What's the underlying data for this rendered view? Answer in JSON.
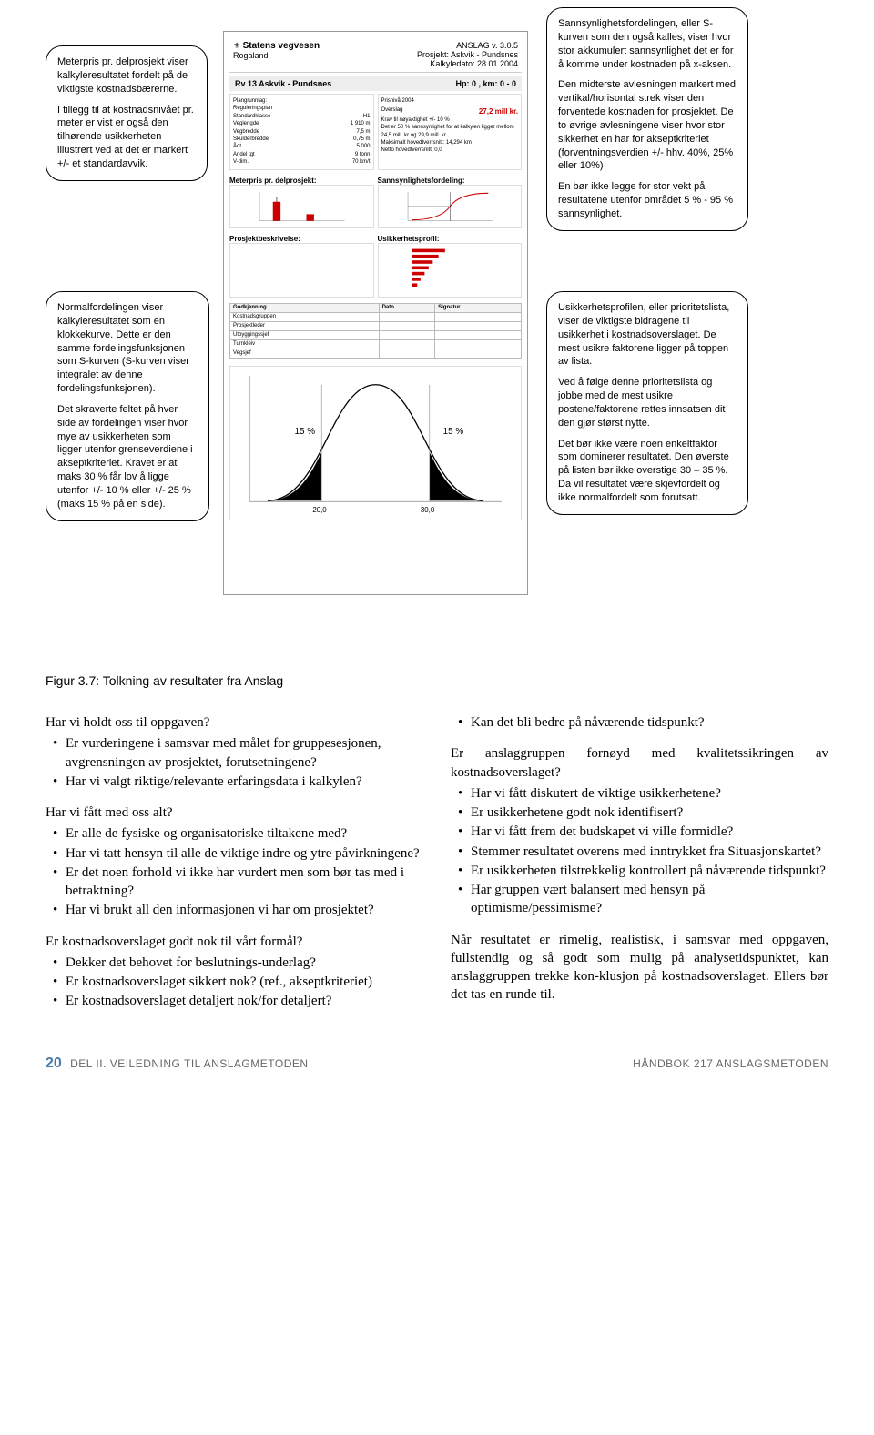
{
  "callouts": {
    "c1_p1": "Meterpris pr. delprosjekt viser kalkyleresultatet fordelt på de viktigste kostnadsbærerne.",
    "c1_p2": "I tillegg til at kostnadsnivået pr. meter er vist er også den tilhørende usikkerheten illustrert ved at det er markert +/- et standardavvik.",
    "c2_p1": "Sannsynlighetsfordelingen, eller S-kurven som den også kalles, viser hvor stor akkumulert sannsynlighet det er for å komme under kostnaden på x-aksen.",
    "c2_p2": "Den midterste avlesningen markert med vertikal/horisontal strek viser den forventede kostnaden for prosjektet. De to øvrige avlesningene viser hvor stor sikkerhet en har for akseptkriteriet (forventningsverdien +/- hhv. 40%, 25% eller 10%)",
    "c2_p3": "En bør ikke legge for stor vekt på resultatene utenfor området 5 % - 95 % sannsynlighet.",
    "c3_p1": "Normalfordelingen viser kalkyleresultatet som en klokkekurve. Dette er den samme fordelingsfunksjonen som S-kurven (S-kurven viser integralet av denne fordelingsfunksjonen).",
    "c3_p2": "Det skraverte feltet på hver side av fordelingen viser hvor mye av usikkerheten som ligger utenfor grenseverdiene i akseptkriteriet. Kravet er at maks 30 % får lov å ligge utenfor +/- 10 % eller +/- 25 % (maks 15 % på en side).",
    "c4_p1": "Usikkerhetsprofilen, eller prioritetslista, viser de viktigste bidragene til usikkerhet i kostnadsoverslaget. De mest usikre faktorene ligger på toppen av lista.",
    "c4_p2": "Ved å følge denne prioritetslista og jobbe med de mest usikre postene/faktorene rettes innsatsen dit den gjør størst nytte.",
    "c4_p3": "Det bør ikke være noen enkeltfaktor som dominerer resultatet. Den øverste på listen bør ikke overstige 30 – 35 %. Da vil resultatet være skjevfordelt og ikke normalfordelt som forutsatt."
  },
  "doc": {
    "org": "Statens vegvesen",
    "region": "Rogaland",
    "ver": "ANSLAG v. 3.0.5",
    "proj": "Prosjekt: Askvik - Pundsnes",
    "date": "Kalkyledato: 28.01.2004",
    "title_bar": "Rv 13 Askvik - Pundsnes",
    "hp": "Hp: 0 , km: 0 - 0",
    "left_col": {
      "l1": "Plangrunnlag:",
      "l1v": "Reguleringsplan",
      "l2": "Standardklasse",
      "l2v": "H1",
      "l3": "Veglengde",
      "l3v": "1 910 m",
      "l4": "Vegbredde",
      "l4v": "7,5 m",
      "l5": "Skulderbredde",
      "l5v": "0,75 m",
      "l6": "Ådt",
      "l6v": "5 000",
      "l7": "Andel tgt",
      "l7v": "9 tonn",
      "l8": "V-dim.",
      "l8v": "70 km/t"
    },
    "right_col": {
      "r1": "Prisnivå 2004",
      "r2_label": "Overslag",
      "r2_value": "27,2 mill kr.",
      "r3": "Krav til nøyaktighet +/- 10 %",
      "r4": "Det er 50 % sannsynlighet for at kalkylen ligger mellom 24,5 mill. kr og 29,9 mill. kr",
      "r5": "Maksimalt hovedtverrsnitt: 14,294 km",
      "r6": "Netto hovedtverrsnitt: 0,0"
    },
    "sect_meterpris": "Meterpris pr. delprosjekt:",
    "sect_sannsyn": "Sannsynlighetsfordeling:",
    "sect_prosjbesk": "Prosjektbeskrivelse:",
    "sect_usikker": "Usikkerhetsprofil:",
    "approval_headers": [
      "Godkjenning",
      "Dato",
      "Signatur"
    ],
    "approval_rows": [
      "Kostnadsgruppen",
      "Prosjektleder",
      "Utbyggingssjef",
      "Turnkleiv",
      "Vegsjef"
    ],
    "bell_left_pct": "15 %",
    "bell_right_pct": "15 %",
    "bell_x1": "20,0",
    "bell_x2": "30,0"
  },
  "caption": "Figur 3.7: Tolkning av resultater fra Anslag",
  "colL": {
    "q1": "Har vi holdt oss til oppgaven?",
    "q1_items": [
      "Er vurderingene i samsvar med målet for gruppesesjonen, avgrensningen av prosjektet, forutsetningene?",
      "Har vi valgt riktige/relevante erfaringsdata i kalkylen?"
    ],
    "q2": "Har vi fått med oss alt?",
    "q2_items": [
      "Er alle de fysiske og organisatoriske tiltakene med?",
      "Har vi tatt hensyn til alle de viktige indre og ytre påvirkningene?",
      "Er det noen forhold vi ikke har vurdert men som bør tas med i betraktning?",
      "Har vi brukt all den informasjonen vi har om prosjektet?"
    ],
    "q3": "Er kostnadsoverslaget godt nok til vårt formål?",
    "q3_items": [
      "Dekker det behovet for beslutnings-underlag?",
      "Er kostnadsoverslaget sikkert nok? (ref., akseptkriteriet)",
      "Er kostnadsoverslaget detaljert nok/for detaljert?"
    ]
  },
  "colR": {
    "q4_items": [
      "Kan det bli bedre på nåværende tidspunkt?"
    ],
    "q5": "Er anslaggruppen fornøyd med kvalitetssikringen av kostnadsoverslaget?",
    "q5_items": [
      "Har vi fått diskutert de viktige usikkerhetene?",
      "Er usikkerhetene godt nok identifisert?",
      "Har vi fått frem det budskapet vi ville formidle?",
      "Stemmer resultatet overens med inntrykket fra Situasjonskartet?",
      "Er usikkerheten tilstrekkelig kontrollert på nåværende tidspunkt?",
      "Har gruppen vært balansert med hensyn på optimisme/pessimisme?"
    ],
    "para": "Når resultatet er rimelig, realistisk, i samsvar med oppgaven, fullstendig og så godt som mulig på analysetidspunktet, kan anslaggruppen trekke kon-klusjon på kostnadsoverslaget. Ellers bør det tas en runde til."
  },
  "footer": {
    "page": "20",
    "section": "DEL II. VEILEDNING TIL ANSLAGMETODEN",
    "book": "HÅNDBOK 217 ANSLAGSMETODEN"
  },
  "style": {
    "accent": "#c00000",
    "page_num_color": "#4a7aa7"
  }
}
